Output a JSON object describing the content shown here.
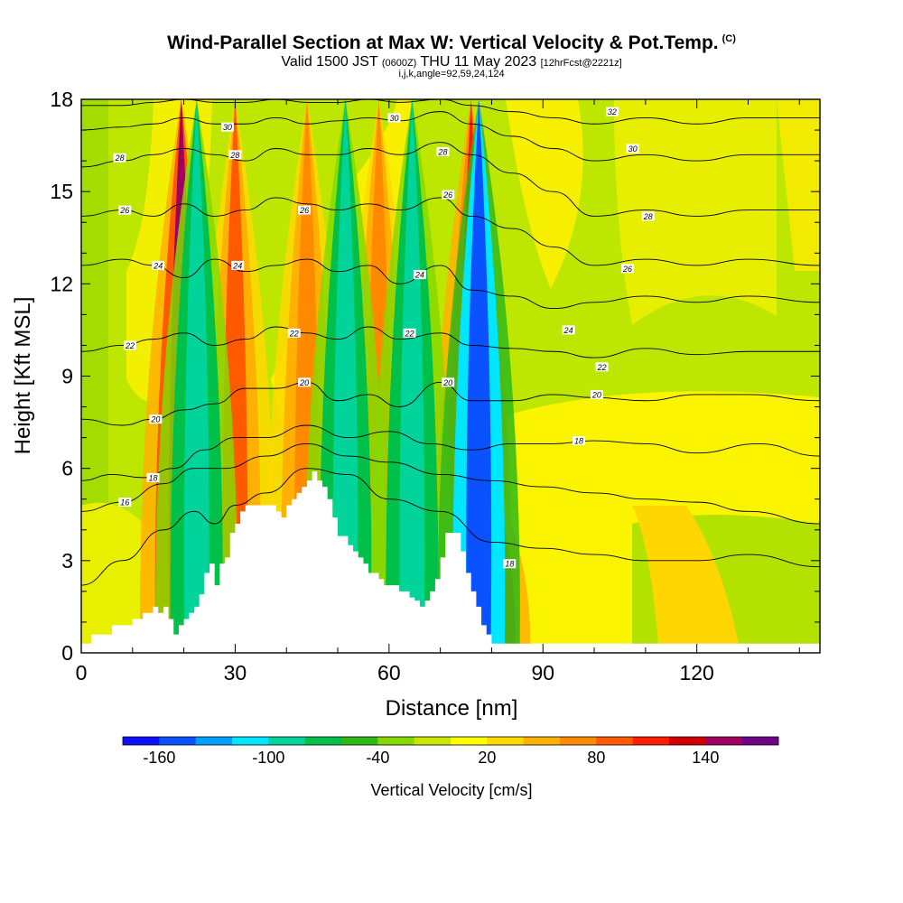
{
  "header": {
    "title": "Wind-Parallel Section at Max W: Vertical Velocity & Pot.Temp.",
    "title_tag": "(C)",
    "subtitle_a": "Valid 1500 JST",
    "subtitle_b": "(0600Z)",
    "subtitle_c": "THU 11 May 2023",
    "subtitle_d": "[12hrFcst@2221z]",
    "subtitle2": "i,j,k,angle=92,59,24,124"
  },
  "chart_data": {
    "type": "heatmap",
    "xlabel": "Distance [nm]",
    "ylabel": "Height [Kft MSL]",
    "xlim": [
      0,
      144
    ],
    "ylim": [
      0,
      18
    ],
    "x_ticks": [
      0,
      30,
      60,
      90,
      120
    ],
    "y_ticks": [
      0,
      3,
      6,
      9,
      12,
      15,
      18
    ],
    "field": "Vertical Velocity [cm/s]",
    "contour_field": "Potential temperature (C)",
    "updraft_columns": [
      {
        "x": 19.5,
        "w_cm_s": 140,
        "top_kft": 18
      },
      {
        "x": 30,
        "w_cm_s": 80,
        "top_kft": 18
      },
      {
        "x": 44,
        "w_cm_s": 60,
        "top_kft": 18
      },
      {
        "x": 58,
        "w_cm_s": 60,
        "top_kft": 18
      },
      {
        "x": 71,
        "w_cm_s": 120,
        "top_kft": 9
      },
      {
        "x": 76,
        "w_cm_s": 100,
        "top_kft": 18
      },
      {
        "x": 79.5,
        "w_cm_s": 140,
        "top_kft": 6
      }
    ],
    "downdraft_columns": [
      {
        "x": 22.5,
        "w_cm_s": -100
      },
      {
        "x": 51.5,
        "w_cm_s": -100
      },
      {
        "x": 64.5,
        "w_cm_s": -100
      },
      {
        "x": 77.5,
        "w_cm_s": -160
      }
    ],
    "terrain": {
      "x": [
        0,
        2,
        4,
        6,
        8,
        10,
        12,
        13,
        14,
        15,
        16,
        17,
        18,
        19,
        20,
        21,
        22,
        23,
        24,
        25,
        26,
        27,
        28,
        29,
        30,
        31,
        32,
        33,
        34,
        35,
        36,
        37,
        38,
        39,
        40,
        41,
        42,
        43,
        44,
        45,
        46,
        47,
        48,
        49,
        50,
        51,
        52,
        53,
        54,
        55,
        56,
        57,
        58,
        59,
        60,
        61,
        62,
        63,
        64,
        65,
        66,
        67,
        68,
        69,
        70,
        71,
        72,
        73,
        74,
        75,
        76,
        77,
        78,
        79,
        80,
        82,
        84,
        86,
        88,
        90,
        92,
        95,
        100,
        110,
        120,
        130,
        140,
        144
      ],
      "kft": [
        0.3,
        0.6,
        0.6,
        0.9,
        0.9,
        1.1,
        1.3,
        1.3,
        1.5,
        1.3,
        1.5,
        1.1,
        0.6,
        0.9,
        1.1,
        1.3,
        1.5,
        1.9,
        2.6,
        2.9,
        2.2,
        2.9,
        3.1,
        3.9,
        4.2,
        4.6,
        4.8,
        4.8,
        4.8,
        4.8,
        4.8,
        4.8,
        4.6,
        4.4,
        4.8,
        5.0,
        5.2,
        5.4,
        5.6,
        5.9,
        5.6,
        5.4,
        5.0,
        4.4,
        3.8,
        3.8,
        3.5,
        3.3,
        3.1,
        2.9,
        2.6,
        2.6,
        2.4,
        2.2,
        2.2,
        2.2,
        2.0,
        2.0,
        1.8,
        1.7,
        1.5,
        1.7,
        2.0,
        2.4,
        3.1,
        3.9,
        3.9,
        3.9,
        3.3,
        2.6,
        2.0,
        1.5,
        0.9,
        0.6,
        0.3,
        0.3,
        0.3,
        0.3,
        0.3,
        0.3,
        0.3,
        0.3,
        0.3,
        0.3,
        0.3,
        0.3,
        0.3,
        0.3
      ]
    },
    "isentropes": [
      {
        "theta": 14,
        "x": [
          0,
          8,
          16,
          22,
          26,
          30,
          36,
          44,
          52,
          60,
          70,
          80,
          90,
          100,
          110,
          120,
          130,
          144
        ],
        "kft": [
          2.2,
          3.0,
          4.0,
          4.6,
          4.2,
          4.8,
          5.2,
          6.0,
          5.8,
          5.0,
          4.6,
          3.6,
          3.4,
          3.2,
          3.0,
          3.0,
          3.2,
          2.8
        ]
      },
      {
        "theta": 16,
        "x": [
          0,
          8,
          16,
          22,
          28,
          36,
          44,
          52,
          60,
          70,
          80,
          90,
          100,
          110,
          120,
          130,
          144
        ],
        "kft": [
          4.6,
          4.9,
          5.5,
          6.0,
          6.0,
          6.4,
          6.8,
          6.4,
          6.2,
          5.8,
          5.6,
          5.4,
          5.2,
          5.0,
          4.9,
          4.6,
          4.2
        ]
      },
      {
        "theta": 18,
        "x": [
          0,
          6,
          12,
          18,
          24,
          30,
          36,
          44,
          52,
          60,
          68,
          76,
          84,
          92,
          100,
          110,
          120,
          132,
          144
        ],
        "kft": [
          5.6,
          5.8,
          5.7,
          6.0,
          6.6,
          7.0,
          7.0,
          7.4,
          7.0,
          7.2,
          6.8,
          6.6,
          6.8,
          6.8,
          6.9,
          6.8,
          6.5,
          6.8,
          6.4
        ]
      },
      {
        "theta": 20,
        "x": [
          0,
          8,
          14,
          20,
          26,
          32,
          38,
          44,
          50,
          56,
          62,
          70,
          76,
          84,
          92,
          100,
          110,
          120,
          130,
          144
        ],
        "kft": [
          7.6,
          7.4,
          7.6,
          7.9,
          8.1,
          8.6,
          8.6,
          8.8,
          8.2,
          8.4,
          8.0,
          8.8,
          8.2,
          8.2,
          8.4,
          8.3,
          8.2,
          8.4,
          8.4,
          8.2
        ]
      },
      {
        "theta": 22,
        "x": [
          0,
          8,
          14,
          20,
          26,
          32,
          38,
          44,
          50,
          56,
          62,
          70,
          76,
          84,
          92,
          100,
          110,
          120,
          130,
          144
        ],
        "kft": [
          9.8,
          10.0,
          10.2,
          10.4,
          10.0,
          10.2,
          10.6,
          10.4,
          10.2,
          10.6,
          10.2,
          10.4,
          10.0,
          9.9,
          9.8,
          9.6,
          9.9,
          9.7,
          9.8,
          9.8
        ]
      },
      {
        "theta": 24,
        "x": [
          0,
          8,
          14,
          20,
          26,
          32,
          38,
          44,
          50,
          56,
          62,
          70,
          76,
          84,
          92,
          100,
          110,
          120,
          130,
          144
        ],
        "kft": [
          12.6,
          12.8,
          12.6,
          12.2,
          12.8,
          12.4,
          12.6,
          12.8,
          12.4,
          12.6,
          12.0,
          12.6,
          11.8,
          11.6,
          11.2,
          11.4,
          11.6,
          11.4,
          11.6,
          11.4
        ]
      },
      {
        "theta": 26,
        "x": [
          0,
          8,
          14,
          20,
          26,
          32,
          38,
          44,
          50,
          56,
          62,
          70,
          76,
          84,
          92,
          100,
          110,
          120,
          130,
          144
        ],
        "kft": [
          14.2,
          14.4,
          14.2,
          14.6,
          14.2,
          14.4,
          14.8,
          14.6,
          14.4,
          14.6,
          14.4,
          14.8,
          14.2,
          13.8,
          13.2,
          12.6,
          12.8,
          12.6,
          12.8,
          12.6
        ]
      },
      {
        "theta": 28,
        "x": [
          0,
          8,
          14,
          20,
          26,
          32,
          38,
          44,
          50,
          56,
          62,
          70,
          76,
          84,
          92,
          100,
          110,
          120,
          130,
          144
        ],
        "kft": [
          15.8,
          16.0,
          16.2,
          16.4,
          16.2,
          16.0,
          16.4,
          16.2,
          16.2,
          16.4,
          16.2,
          16.6,
          16.2,
          15.6,
          15.0,
          14.2,
          14.4,
          14.2,
          14.4,
          14.4
        ]
      },
      {
        "theta": 30,
        "x": [
          0,
          8,
          14,
          20,
          26,
          32,
          38,
          44,
          50,
          56,
          62,
          70,
          76,
          84,
          92,
          100,
          110,
          120,
          130,
          144
        ],
        "kft": [
          17.0,
          17.1,
          17.2,
          17.4,
          17.2,
          17.2,
          17.4,
          17.2,
          17.3,
          17.4,
          17.3,
          17.6,
          17.2,
          16.8,
          16.4,
          16.0,
          16.2,
          16.0,
          16.2,
          16.2
        ]
      },
      {
        "theta": 32,
        "x": [
          0,
          8,
          14,
          20,
          26,
          32,
          38,
          44,
          50,
          56,
          62,
          70,
          76,
          84,
          92,
          100,
          110,
          120,
          130,
          144
        ],
        "kft": [
          17.8,
          17.8,
          17.9,
          18.0,
          17.9,
          17.9,
          18.0,
          17.9,
          17.9,
          18.0,
          17.9,
          18.0,
          17.8,
          17.6,
          17.4,
          17.2,
          17.4,
          17.2,
          17.4,
          17.4
        ]
      }
    ],
    "contour_labels": [
      {
        "text": "28",
        "x": 7.5,
        "kft": 16.1
      },
      {
        "text": "26",
        "x": 8.5,
        "kft": 14.4
      },
      {
        "text": "24",
        "x": 15,
        "kft": 12.6
      },
      {
        "text": "22",
        "x": 9.5,
        "kft": 10.0
      },
      {
        "text": "20",
        "x": 14.5,
        "kft": 7.6
      },
      {
        "text": "18",
        "x": 14,
        "kft": 5.7
      },
      {
        "text": "16",
        "x": 8.5,
        "kft": 4.9
      },
      {
        "text": "30",
        "x": 28.5,
        "kft": 17.1
      },
      {
        "text": "28",
        "x": 30,
        "kft": 16.2
      },
      {
        "text": "24",
        "x": 30.5,
        "kft": 12.6
      },
      {
        "text": "26",
        "x": 43.5,
        "kft": 14.4
      },
      {
        "text": "22",
        "x": 41.5,
        "kft": 10.4
      },
      {
        "text": "20",
        "x": 43.5,
        "kft": 8.8
      },
      {
        "text": "30",
        "x": 61,
        "kft": 17.4
      },
      {
        "text": "28",
        "x": 70.5,
        "kft": 16.3
      },
      {
        "text": "26",
        "x": 71.5,
        "kft": 14.9
      },
      {
        "text": "24",
        "x": 66,
        "kft": 12.3
      },
      {
        "text": "22",
        "x": 64,
        "kft": 10.4
      },
      {
        "text": "20",
        "x": 71.5,
        "kft": 8.8
      },
      {
        "text": "18",
        "x": 83.5,
        "kft": 2.9
      },
      {
        "text": "32",
        "x": 103.5,
        "kft": 17.6
      },
      {
        "text": "30",
        "x": 107.5,
        "kft": 16.4
      },
      {
        "text": "28",
        "x": 110.5,
        "kft": 14.2
      },
      {
        "text": "26",
        "x": 106.5,
        "kft": 12.5
      },
      {
        "text": "24",
        "x": 95,
        "kft": 10.5
      },
      {
        "text": "22",
        "x": 101.5,
        "kft": 9.3
      },
      {
        "text": "20",
        "x": 100.5,
        "kft": 8.4
      },
      {
        "text": "18",
        "x": 97,
        "kft": 6.9
      }
    ]
  },
  "colorbar": {
    "title": "Vertical Velocity [cm/s]",
    "colors": [
      "#1010ff",
      "#0a52ff",
      "#00a0ff",
      "#00e6ff",
      "#00d49a",
      "#00c04a",
      "#30b818",
      "#86d800",
      "#c8e600",
      "#ffff00",
      "#ffd800",
      "#ffb000",
      "#ff8a00",
      "#ff5a00",
      "#ff1e00",
      "#d00000",
      "#a00060",
      "#700088"
    ],
    "tick_labels": [
      {
        "text": "-160",
        "v": -160
      },
      {
        "text": "-100",
        "v": -100
      },
      {
        "text": "-40",
        "v": -40
      },
      {
        "text": "20",
        "v": 20
      },
      {
        "text": "80",
        "v": 80
      },
      {
        "text": "140",
        "v": 140
      }
    ],
    "vmin": -180,
    "vmax": 180
  }
}
